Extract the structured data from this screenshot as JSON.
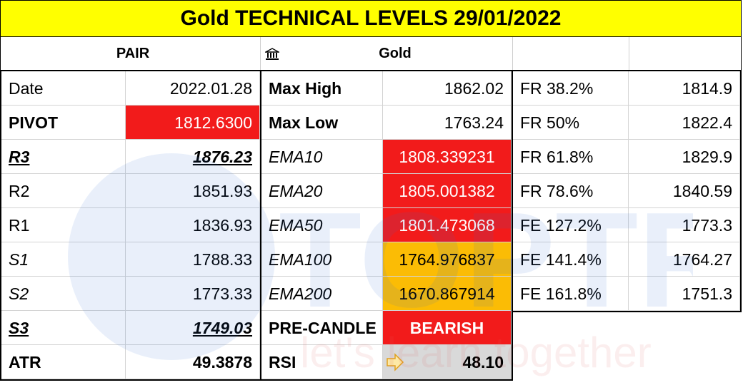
{
  "title": "Gold TECHNICAL LEVELS 29/01/2022",
  "header": {
    "pair_label": "PAIR",
    "instrument_icon": "bank-icon",
    "instrument": "Gold"
  },
  "col1": [
    {
      "label": "Date",
      "value": "2022.01.28"
    },
    {
      "label": "PIVOT",
      "value": "1812.6300"
    },
    {
      "label": "R3",
      "value": "1876.23"
    },
    {
      "label": "R2",
      "value": "1851.93"
    },
    {
      "label": "R1",
      "value": "1836.93"
    },
    {
      "label": "S1",
      "value": "1788.33"
    },
    {
      "label": "S2",
      "value": "1773.33"
    },
    {
      "label": "S3",
      "value": "1749.03"
    },
    {
      "label": "ATR",
      "value": "49.3878"
    }
  ],
  "col2": [
    {
      "label": "Max High",
      "value": "1862.02"
    },
    {
      "label": "Max Low",
      "value": "1763.24"
    },
    {
      "label": "EMA10",
      "value": "1808.339231"
    },
    {
      "label": "EMA20",
      "value": "1805.001382"
    },
    {
      "label": "EMA50",
      "value": "1801.473068"
    },
    {
      "label": "EMA100",
      "value": "1764.976837"
    },
    {
      "label": "EMA200",
      "value": "1670.867914"
    },
    {
      "label": "PRE-CANDLE",
      "value": "BEARISH"
    },
    {
      "label": "RSI",
      "value": "48.10",
      "icon": "arrow-right-icon"
    }
  ],
  "col3": [
    {
      "label": "FR 38.2%",
      "value": "1814.9"
    },
    {
      "label": "FR 50%",
      "value": "1822.4"
    },
    {
      "label": "FR 61.8%",
      "value": "1829.9"
    },
    {
      "label": "FR 78.6%",
      "value": "1840.59"
    },
    {
      "label": "FE 127.2%",
      "value": "1773.3"
    },
    {
      "label": "FE 141.4%",
      "value": "1764.27"
    },
    {
      "label": "FE 161.8%",
      "value": "1751.3"
    }
  ],
  "watermark": {
    "text": "TOPTRIEU",
    "tagline": "let's learn together"
  },
  "colors": {
    "title_bg": "#ffff00",
    "red": "#f21b1b",
    "orange": "#fbbc05",
    "gray": "#d9d9d9",
    "watermark": "#2f6fd6"
  }
}
